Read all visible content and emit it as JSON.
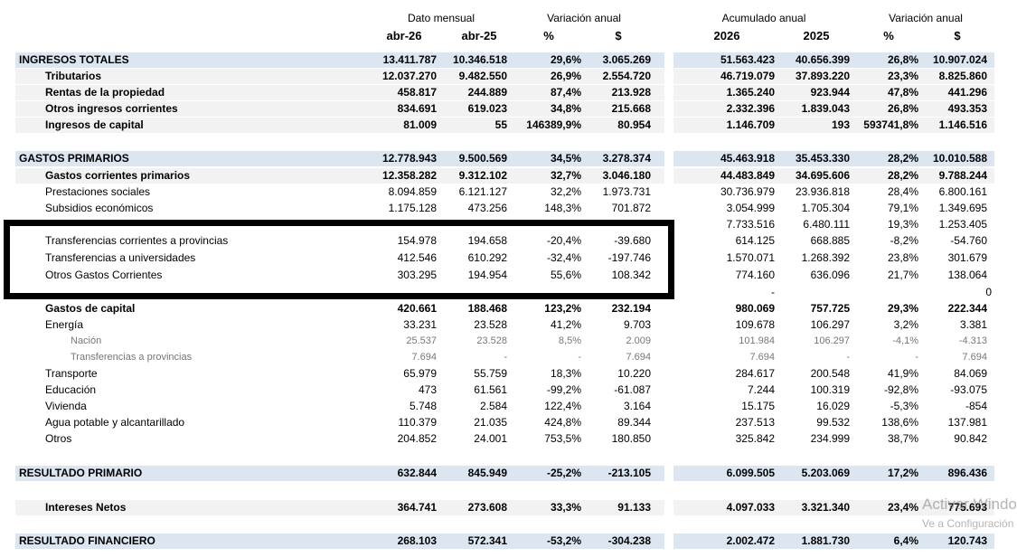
{
  "headers": {
    "groups": [
      "Dato mensual",
      "Variación anual",
      "Acumulado anual",
      "Variación anual"
    ],
    "columns": [
      "abr-26",
      "abr-25",
      "%",
      "$",
      "2026",
      "2025",
      "%",
      "$"
    ]
  },
  "rows": [
    [
      "INGRESOS TOTALES",
      "13.411.787",
      "10.346.518",
      "29,6%",
      "3.065.269",
      "51.563.423",
      "40.656.399",
      "26,8%",
      "10.907.024"
    ],
    [
      "Tributarios",
      "12.037.270",
      "9.482.550",
      "26,9%",
      "2.554.720",
      "46.719.079",
      "37.893.220",
      "23,3%",
      "8.825.860"
    ],
    [
      "Rentas de la propiedad",
      "458.817",
      "244.889",
      "87,4%",
      "213.928",
      "1.365.240",
      "923.944",
      "47,8%",
      "441.296"
    ],
    [
      "Otros ingresos corrientes",
      "834.691",
      "619.023",
      "34,8%",
      "215.668",
      "2.332.396",
      "1.839.043",
      "26,8%",
      "493.353"
    ],
    [
      "Ingresos de capital",
      "81.009",
      "55",
      "146389,9%",
      "80.954",
      "1.146.709",
      "193",
      "593741,8%",
      "1.146.516"
    ],
    [
      "GASTOS PRIMARIOS",
      "12.778.943",
      "9.500.569",
      "34,5%",
      "3.278.374",
      "45.463.918",
      "35.453.330",
      "28,2%",
      "10.010.588"
    ],
    [
      "Gastos corrientes primarios",
      "12.358.282",
      "9.312.102",
      "32,7%",
      "3.046.180",
      "44.483.849",
      "34.695.606",
      "28,2%",
      "9.788.244"
    ],
    [
      "Prestaciones sociales",
      "8.094.859",
      "6.121.127",
      "32,2%",
      "1.973.731",
      "30.736.979",
      "23.936.818",
      "28,4%",
      "6.800.161"
    ],
    [
      "Subsidios económicos",
      "1.175.128",
      "473.256",
      "148,3%",
      "701.872",
      "3.054.999",
      "1.705.304",
      "79,1%",
      "1.349.695"
    ],
    [
      null,
      null,
      null,
      null,
      null,
      "7.733.516",
      "6.480.111",
      "19,3%",
      "1.253.405"
    ],
    [
      "Transferencias corrientes a provincias",
      "154.978",
      "194.658",
      "-20,4%",
      "-39.680",
      "614.125",
      "668.885",
      "-8,2%",
      "-54.760"
    ],
    [
      "Transferencias a universidades",
      "412.546",
      "610.292",
      "-32,4%",
      "-197.746",
      "1.570.071",
      "1.268.392",
      "23,8%",
      "301.679"
    ],
    [
      "Otros Gastos Corrientes",
      "303.295",
      "194.954",
      "55,6%",
      "108.342",
      "774.160",
      "636.096",
      "21,7%",
      "138.064"
    ],
    [
      null,
      null,
      null,
      null,
      null,
      "-",
      null,
      null,
      "0"
    ],
    [
      "Gastos de capital",
      "420.661",
      "188.468",
      "123,2%",
      "232.194",
      "980.069",
      "757.725",
      "29,3%",
      "222.344"
    ],
    [
      "Energía",
      "33.231",
      "23.528",
      "41,2%",
      "9.703",
      "109.678",
      "106.297",
      "3,2%",
      "3.381"
    ],
    [
      "Nación",
      "25.537",
      "23.528",
      "8,5%",
      "2.009",
      "101.984",
      "106.297",
      "-4,1%",
      "-4.313"
    ],
    [
      "Transferencias a provincias",
      "7.694",
      "-",
      "-",
      "7.694",
      "7.694",
      "-",
      "-",
      "7.694"
    ],
    [
      "Transporte",
      "65.979",
      "55.759",
      "18,3%",
      "10.220",
      "284.617",
      "200.548",
      "41,9%",
      "84.069"
    ],
    [
      "Educación",
      "473",
      "61.561",
      "-99,2%",
      "-61.087",
      "7.244",
      "100.319",
      "-92,8%",
      "-93.075"
    ],
    [
      "Vivienda",
      "5.748",
      "2.584",
      "122,4%",
      "3.164",
      "15.175",
      "16.029",
      "-5,3%",
      "-854"
    ],
    [
      "Agua potable y alcantarillado",
      "110.379",
      "21.035",
      "424,8%",
      "89.344",
      "237.513",
      "99.532",
      "138,6%",
      "137.981"
    ],
    [
      "Otros",
      "204.852",
      "24.001",
      "753,5%",
      "180.850",
      "325.842",
      "234.999",
      "38,7%",
      "90.842"
    ],
    [
      "RESULTADO PRIMARIO",
      "632.844",
      "845.949",
      "-25,2%",
      "-213.105",
      "6.099.505",
      "5.203.069",
      "17,2%",
      "896.436"
    ],
    [
      "Intereses Netos",
      "364.741",
      "273.608",
      "33,3%",
      "91.133",
      "4.097.033",
      "3.321.340",
      "23,4%",
      "775.693"
    ],
    [
      "RESULTADO FINANCIERO",
      "268.103",
      "572.341",
      "-53,2%",
      "-304.238",
      "2.002.472",
      "1.881.730",
      "6,4%",
      "120.743"
    ]
  ],
  "watermark": [
    "Activar Windows",
    "Ve a Configuración"
  ]
}
